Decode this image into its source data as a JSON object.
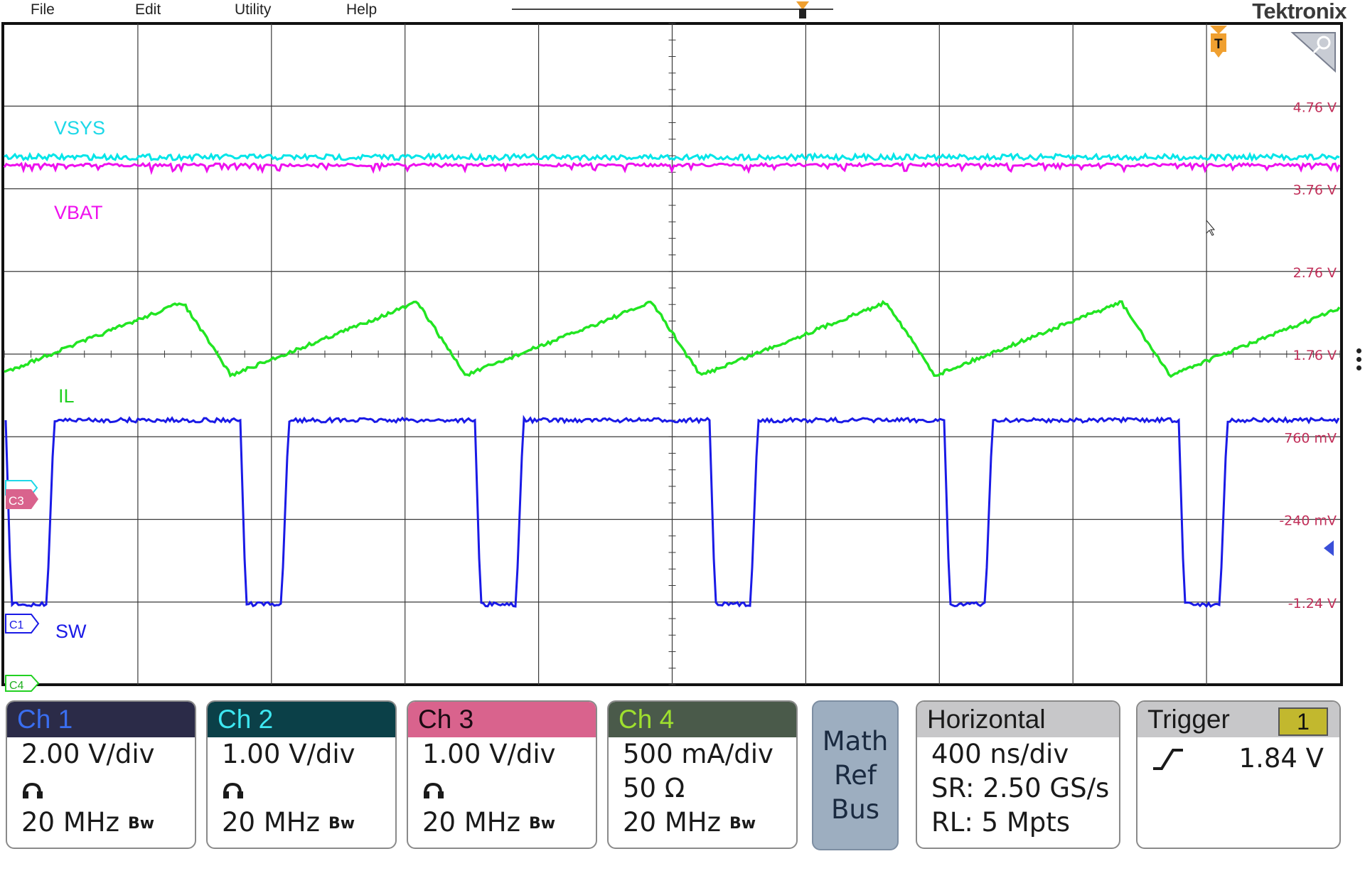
{
  "menu": {
    "items": [
      "File",
      "Edit",
      "Utility",
      "Help"
    ],
    "brand": "Tektronix"
  },
  "waveform": {
    "scale_labels": [
      "4.76 V",
      "3.76 V",
      "2.76 V",
      "1.76 V",
      "760 mV",
      "-240 mV",
      "-1.24 V"
    ],
    "trace_labels": {
      "vsys": "VSYS",
      "vbat": "VBAT",
      "il": "IL",
      "sw": "SW"
    },
    "markers": {
      "c1": "C1",
      "c3": "C3",
      "c4": "C4",
      "trigger": "T"
    },
    "colors": {
      "ch1": "#1a1ae6",
      "ch2": "#00e5e8",
      "ch3": "#ee10ee",
      "ch4": "#22e522",
      "grid": "#3a3a3a"
    }
  },
  "channels": [
    {
      "name": "Ch 1",
      "scale": "2.00 V/div",
      "bandwidth": "20 MHz",
      "bw_icon": "Bw",
      "header_color": "#2b2b48",
      "title_color": "#3a6ef0"
    },
    {
      "name": "Ch 2",
      "scale": "1.00 V/div",
      "bandwidth": "20 MHz",
      "bw_icon": "Bw",
      "header_color": "#0b4048",
      "title_color": "#3ee8f2"
    },
    {
      "name": "Ch 3",
      "scale": "1.00 V/div",
      "bandwidth": "20 MHz",
      "bw_icon": "Bw",
      "header_color": "#d9638d",
      "title_color": "#1a0a12"
    },
    {
      "name": "Ch 4",
      "scale": "500 mA/div",
      "termination": "50 Ω",
      "bandwidth": "20 MHz",
      "bw_icon": "Bw",
      "header_color": "#4a5a4a",
      "title_color": "#9fe02e"
    }
  ],
  "math_ref_bus": {
    "lines": [
      "Math",
      "Ref",
      "Bus"
    ]
  },
  "horizontal": {
    "title": "Horizontal",
    "scale": "400 ns/div",
    "sample_rate": "SR: 2.50 GS/s",
    "record_length": "RL: 5 Mpts"
  },
  "trigger": {
    "title": "Trigger",
    "source": "1",
    "level": "1.84 V",
    "slope_icon": "rising-edge-icon"
  }
}
